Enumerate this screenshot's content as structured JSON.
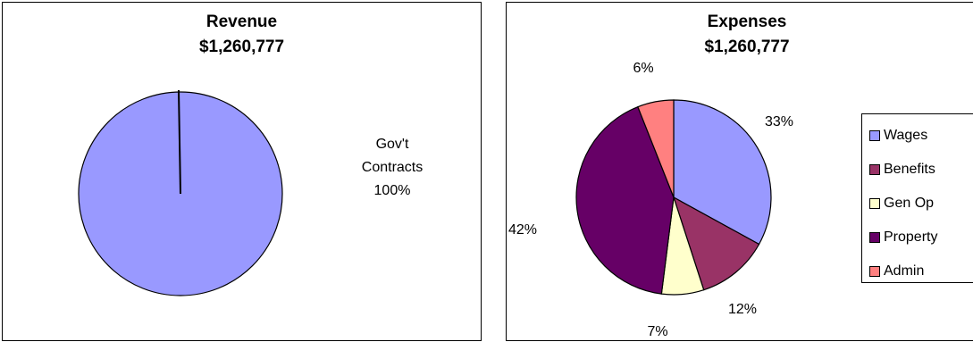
{
  "charts": {
    "revenue": {
      "title": "Revenue",
      "subtitle": "$1,260,777"
    },
    "expenses": {
      "title": "Expenses",
      "subtitle": "$1,260,777"
    }
  },
  "chart_data": [
    {
      "type": "pie",
      "title": "Revenue",
      "subtitle": "$1,260,777",
      "categories": [
        "Gov't Contracts"
      ],
      "values": [
        100
      ],
      "labels": [
        [
          "Gov't",
          "Contracts",
          "100%"
        ]
      ],
      "colors": [
        "#9999ff"
      ]
    },
    {
      "type": "pie",
      "title": "Expenses",
      "subtitle": "$1,260,777",
      "categories": [
        "Wages",
        "Benefits",
        "Gen Op",
        "Property",
        "Admin"
      ],
      "values": [
        33,
        12,
        7,
        42,
        6
      ],
      "labels": [
        "33%",
        "12%",
        "7%",
        "42%",
        "6%"
      ],
      "colors": [
        "#9999ff",
        "#993366",
        "#ffffcc",
        "#660066",
        "#ff8080"
      ],
      "legend_position": "right"
    }
  ]
}
